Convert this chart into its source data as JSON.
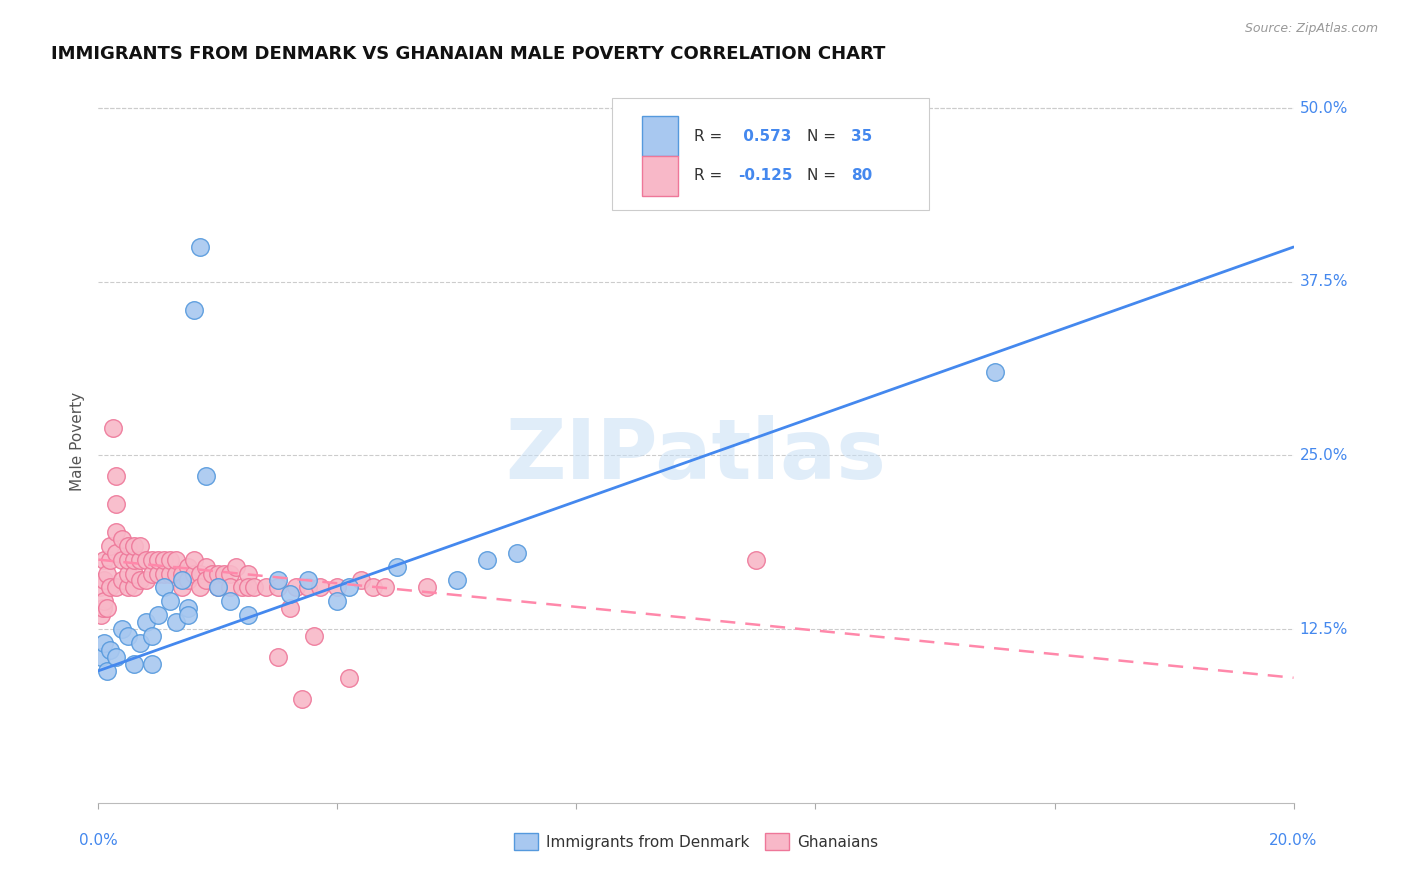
{
  "title": "IMMIGRANTS FROM DENMARK VS GHANAIAN MALE POVERTY CORRELATION CHART",
  "source": "Source: ZipAtlas.com",
  "ylabel": "Male Poverty",
  "ytick_vals": [
    0.0,
    0.125,
    0.25,
    0.375,
    0.5
  ],
  "ytick_labels": [
    "",
    "12.5%",
    "25.0%",
    "37.5%",
    "50.0%"
  ],
  "xmin": 0.0,
  "xmax": 0.2,
  "ymin": 0.0,
  "ymax": 0.52,
  "watermark": "ZIPatlas",
  "legend_blue_label": "Immigrants from Denmark",
  "legend_pink_label": "Ghanaians",
  "R_blue": 0.573,
  "N_blue": 35,
  "R_pink": -0.125,
  "N_pink": 80,
  "blue_fill": "#A8C8F0",
  "pink_fill": "#F8B8C8",
  "blue_edge": "#5599DD",
  "pink_edge": "#EE7799",
  "blue_line": "#4488EE",
  "pink_line": "#FF88AA",
  "blue_scatter": [
    [
      0.0005,
      0.105
    ],
    [
      0.001,
      0.115
    ],
    [
      0.0015,
      0.095
    ],
    [
      0.002,
      0.11
    ],
    [
      0.003,
      0.105
    ],
    [
      0.004,
      0.125
    ],
    [
      0.005,
      0.12
    ],
    [
      0.006,
      0.1
    ],
    [
      0.007,
      0.115
    ],
    [
      0.008,
      0.13
    ],
    [
      0.009,
      0.12
    ],
    [
      0.01,
      0.135
    ],
    [
      0.011,
      0.155
    ],
    [
      0.012,
      0.145
    ],
    [
      0.013,
      0.13
    ],
    [
      0.014,
      0.16
    ],
    [
      0.015,
      0.14
    ],
    [
      0.016,
      0.355
    ],
    [
      0.018,
      0.235
    ],
    [
      0.02,
      0.155
    ],
    [
      0.022,
      0.145
    ],
    [
      0.025,
      0.135
    ],
    [
      0.03,
      0.16
    ],
    [
      0.032,
      0.15
    ],
    [
      0.035,
      0.16
    ],
    [
      0.04,
      0.145
    ],
    [
      0.042,
      0.155
    ],
    [
      0.05,
      0.17
    ],
    [
      0.06,
      0.16
    ],
    [
      0.017,
      0.4
    ],
    [
      0.065,
      0.175
    ],
    [
      0.07,
      0.18
    ],
    [
      0.15,
      0.31
    ],
    [
      0.015,
      0.135
    ],
    [
      0.009,
      0.1
    ]
  ],
  "pink_scatter": [
    [
      0.0003,
      0.155
    ],
    [
      0.0005,
      0.135
    ],
    [
      0.0007,
      0.14
    ],
    [
      0.001,
      0.145
    ],
    [
      0.001,
      0.16
    ],
    [
      0.001,
      0.175
    ],
    [
      0.0015,
      0.14
    ],
    [
      0.0015,
      0.165
    ],
    [
      0.002,
      0.155
    ],
    [
      0.002,
      0.175
    ],
    [
      0.002,
      0.185
    ],
    [
      0.0025,
      0.27
    ],
    [
      0.003,
      0.155
    ],
    [
      0.003,
      0.18
    ],
    [
      0.003,
      0.195
    ],
    [
      0.003,
      0.215
    ],
    [
      0.003,
      0.235
    ],
    [
      0.004,
      0.16
    ],
    [
      0.004,
      0.175
    ],
    [
      0.004,
      0.19
    ],
    [
      0.005,
      0.155
    ],
    [
      0.005,
      0.165
    ],
    [
      0.005,
      0.175
    ],
    [
      0.005,
      0.185
    ],
    [
      0.006,
      0.155
    ],
    [
      0.006,
      0.165
    ],
    [
      0.006,
      0.175
    ],
    [
      0.006,
      0.185
    ],
    [
      0.007,
      0.16
    ],
    [
      0.007,
      0.175
    ],
    [
      0.007,
      0.185
    ],
    [
      0.008,
      0.16
    ],
    [
      0.008,
      0.175
    ],
    [
      0.009,
      0.165
    ],
    [
      0.009,
      0.175
    ],
    [
      0.01,
      0.165
    ],
    [
      0.01,
      0.175
    ],
    [
      0.011,
      0.165
    ],
    [
      0.011,
      0.175
    ],
    [
      0.012,
      0.165
    ],
    [
      0.012,
      0.175
    ],
    [
      0.013,
      0.165
    ],
    [
      0.013,
      0.175
    ],
    [
      0.014,
      0.165
    ],
    [
      0.014,
      0.155
    ],
    [
      0.015,
      0.17
    ],
    [
      0.015,
      0.16
    ],
    [
      0.016,
      0.165
    ],
    [
      0.016,
      0.175
    ],
    [
      0.017,
      0.165
    ],
    [
      0.017,
      0.155
    ],
    [
      0.018,
      0.17
    ],
    [
      0.018,
      0.16
    ],
    [
      0.019,
      0.165
    ],
    [
      0.02,
      0.165
    ],
    [
      0.02,
      0.155
    ],
    [
      0.021,
      0.165
    ],
    [
      0.022,
      0.165
    ],
    [
      0.022,
      0.155
    ],
    [
      0.023,
      0.17
    ],
    [
      0.024,
      0.155
    ],
    [
      0.025,
      0.165
    ],
    [
      0.025,
      0.155
    ],
    [
      0.026,
      0.155
    ],
    [
      0.028,
      0.155
    ],
    [
      0.03,
      0.105
    ],
    [
      0.03,
      0.155
    ],
    [
      0.032,
      0.14
    ],
    [
      0.033,
      0.155
    ],
    [
      0.034,
      0.075
    ],
    [
      0.035,
      0.155
    ],
    [
      0.036,
      0.12
    ],
    [
      0.037,
      0.155
    ],
    [
      0.04,
      0.155
    ],
    [
      0.042,
      0.09
    ],
    [
      0.044,
      0.16
    ],
    [
      0.046,
      0.155
    ],
    [
      0.048,
      0.155
    ],
    [
      0.055,
      0.155
    ],
    [
      0.11,
      0.175
    ]
  ],
  "blue_line_x": [
    0.0,
    0.2
  ],
  "blue_line_y": [
    0.095,
    0.4
  ],
  "pink_line_x": [
    0.0,
    0.2
  ],
  "pink_line_y": [
    0.175,
    0.09
  ]
}
